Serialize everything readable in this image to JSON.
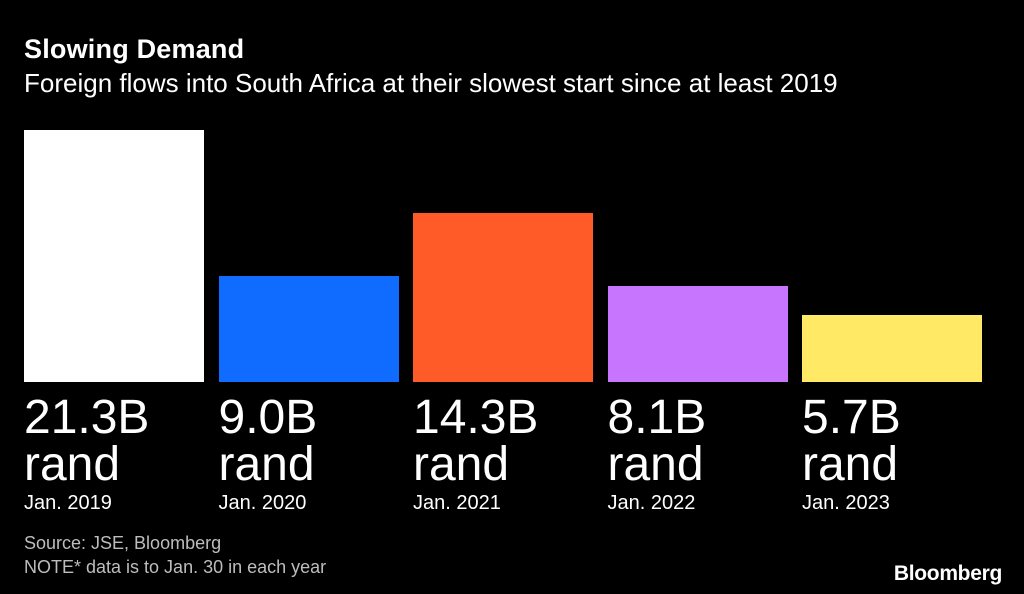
{
  "chart_data": {
    "type": "bar",
    "title": "Slowing Demand",
    "subtitle": "Foreign flows into South Africa at their slowest start since at least 2019",
    "categories": [
      "Jan. 2019",
      "Jan. 2020",
      "Jan. 2021",
      "Jan. 2022",
      "Jan. 2023"
    ],
    "values": [
      21.3,
      9.0,
      14.3,
      8.1,
      5.7
    ],
    "value_labels": [
      "21.3B",
      "9.0B",
      "14.3B",
      "8.1B",
      "5.7B"
    ],
    "unit_label": "rand",
    "colors": [
      "#ffffff",
      "#0f6cff",
      "#ff5b29",
      "#c774ff",
      "#ffe965"
    ],
    "ylim": [
      0,
      21.3
    ],
    "xlabel": "",
    "ylabel": ""
  },
  "footer": {
    "source": "Source: JSE, Bloomberg",
    "note": "NOTE* data is to Jan. 30 in each year",
    "brand": "Bloomberg"
  }
}
